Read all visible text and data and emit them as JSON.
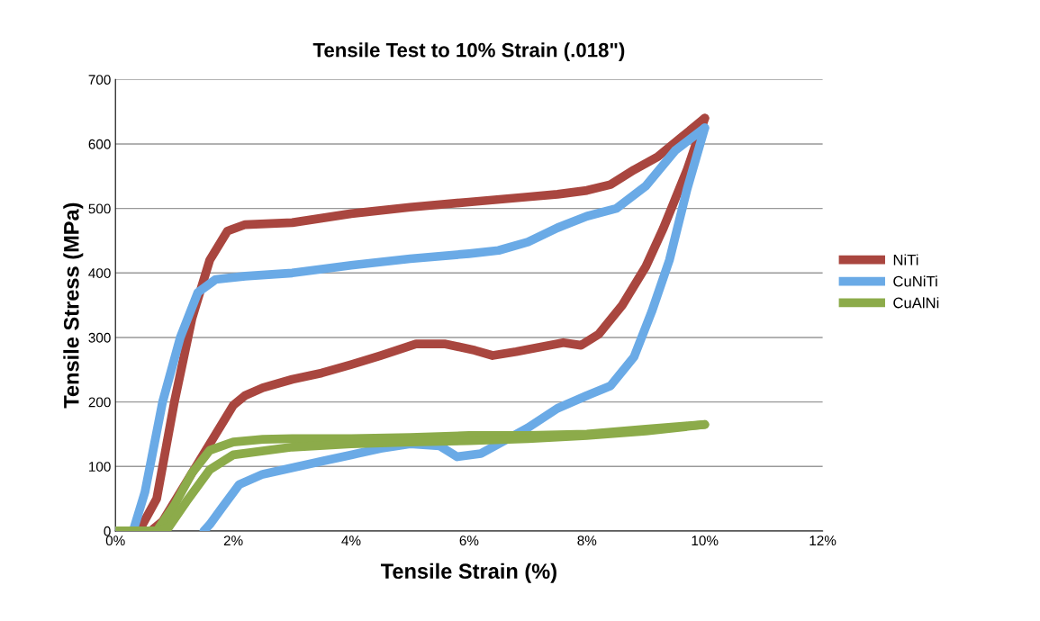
{
  "chart_data": {
    "type": "line",
    "title": "Tensile Test to 10% Strain (.018\")",
    "xlabel": "Tensile Strain (%)",
    "ylabel": "Tensile Stress (MPa)",
    "xlim": [
      0,
      12
    ],
    "xticks": [
      {
        "value": 0,
        "label": "0%"
      },
      {
        "value": 2,
        "label": "2%"
      },
      {
        "value": 4,
        "label": "4%"
      },
      {
        "value": 6,
        "label": "6%"
      },
      {
        "value": 8,
        "label": "8%"
      },
      {
        "value": 10,
        "label": "10%"
      },
      {
        "value": 12,
        "label": "12%"
      }
    ],
    "ylim": [
      0,
      700
    ],
    "yticks": [
      0,
      100,
      200,
      300,
      400,
      500,
      600,
      700
    ],
    "grid": "y",
    "legend": "right",
    "marker": "none",
    "line_style": "solid",
    "series": [
      {
        "name": "NiTi",
        "color": "#a9463f",
        "x": [
          0,
          0.4,
          0.7,
          1.0,
          1.3,
          1.6,
          1.9,
          2.2,
          3,
          4,
          5,
          6,
          7,
          7.5,
          8,
          8.4,
          8.8,
          9.2,
          9.6,
          10
        ],
        "values": [
          0,
          0,
          50,
          200,
          330,
          420,
          465,
          475,
          478,
          492,
          502,
          510,
          518,
          522,
          528,
          537,
          560,
          580,
          610,
          640
        ]
      },
      {
        "color": "#a9463f",
        "x": [
          0.6,
          0.8,
          1.1,
          1.4,
          1.7,
          2,
          2.2,
          2.5,
          3,
          3.5,
          4,
          4.5,
          5.1,
          5.6,
          6.1,
          6.4,
          6.8,
          7.2,
          7.6,
          7.9,
          8.2,
          8.6,
          9,
          9.3,
          9.7,
          10
        ],
        "values": [
          0,
          15,
          60,
          105,
          150,
          195,
          210,
          222,
          235,
          245,
          258,
          272,
          290,
          290,
          280,
          272,
          278,
          285,
          292,
          288,
          305,
          350,
          410,
          470,
          560,
          640
        ]
      },
      {
        "name": "CuNiTi",
        "color": "#6aaae6",
        "x": [
          0,
          0.3,
          0.5,
          0.8,
          1.1,
          1.4,
          1.7,
          2.2,
          3,
          4,
          5,
          6,
          6.5,
          7,
          7.5,
          8,
          8.5,
          9,
          9.5,
          10
        ],
        "values": [
          0,
          0,
          60,
          200,
          300,
          370,
          390,
          395,
          400,
          412,
          422,
          430,
          435,
          448,
          470,
          488,
          500,
          535,
          590,
          625
        ]
      },
      {
        "color": "#6aaae6",
        "x": [
          1.5,
          1.6,
          1.8,
          2.1,
          2.5,
          3,
          3.5,
          4,
          4.5,
          5,
          5.5,
          5.8,
          6.2,
          6.5,
          7,
          7.5,
          8,
          8.4,
          8.8,
          9.1,
          9.4,
          9.7,
          10
        ],
        "values": [
          0,
          10,
          35,
          72,
          88,
          98,
          108,
          118,
          128,
          135,
          132,
          115,
          120,
          135,
          160,
          190,
          210,
          225,
          270,
          340,
          420,
          530,
          625
        ]
      },
      {
        "name": "CuAlNi",
        "color": "#8cab4a",
        "x": [
          0,
          0.7,
          1.0,
          1.3,
          1.6,
          2,
          2.5,
          3,
          4,
          5,
          6,
          7,
          8,
          9,
          10
        ],
        "values": [
          0,
          0,
          40,
          90,
          125,
          138,
          142,
          143,
          143,
          145,
          148,
          148,
          150,
          158,
          165
        ]
      },
      {
        "color": "#8cab4a",
        "x": [
          0.7,
          0.9,
          1.2,
          1.6,
          2,
          3,
          4,
          5,
          6,
          7,
          8,
          9,
          10
        ],
        "values": [
          0,
          5,
          45,
          95,
          118,
          130,
          135,
          138,
          140,
          143,
          148,
          155,
          165
        ]
      }
    ]
  }
}
